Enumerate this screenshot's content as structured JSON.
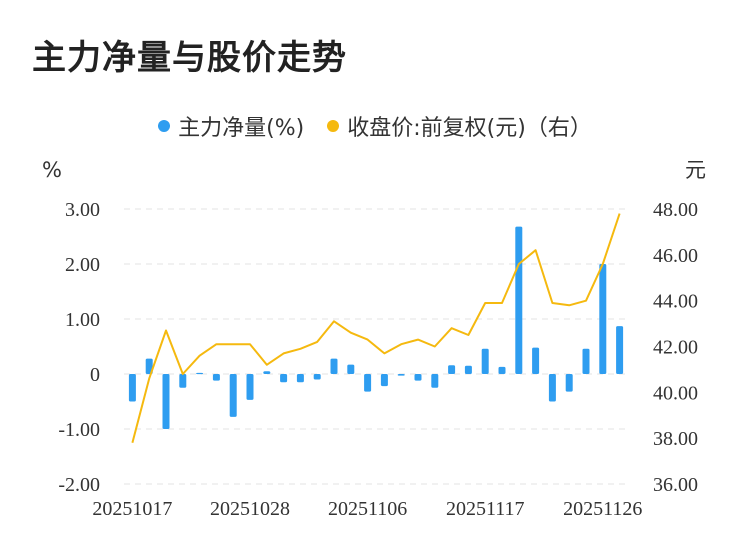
{
  "title": "主力净量与股价走势",
  "colors": {
    "bar": "#2e9df0",
    "line": "#f5b90f",
    "grid": "#e3e3e3"
  },
  "legend": [
    {
      "label": "主力净量(%)",
      "color": "#2e9df0",
      "icon": "dot"
    },
    {
      "label": "收盘价:前复权(元)（右）",
      "color": "#f5b90f",
      "icon": "dot"
    }
  ],
  "chart_data": {
    "type": "bar+line",
    "left_unit": "%",
    "right_unit": "元",
    "ylim": [
      -2.0,
      3.0
    ],
    "y2lim": [
      36.0,
      48.0
    ],
    "y_ticks": [
      "3.00",
      "2.00",
      "1.00",
      "0",
      "-1.00",
      "-2.00"
    ],
    "y_tick_values": [
      3,
      2,
      1,
      0,
      -1,
      -2
    ],
    "y2_ticks": [
      "48.00",
      "46.00",
      "44.00",
      "42.00",
      "40.00",
      "38.00",
      "36.00"
    ],
    "y2_tick_values": [
      48,
      46,
      44,
      42,
      40,
      38,
      36
    ],
    "x_tick_labels": [
      {
        "index": 0,
        "label": "20251017"
      },
      {
        "index": 7,
        "label": "20251028"
      },
      {
        "index": 14,
        "label": "20251106"
      },
      {
        "index": 21,
        "label": "20251117"
      },
      {
        "index": 28,
        "label": "20251126"
      }
    ],
    "grid": true,
    "legend_position": "top-center",
    "series": [
      {
        "name": "主力净量(%)",
        "type": "bar",
        "axis": "left",
        "values": [
          -0.5,
          0.28,
          -1.0,
          -0.25,
          0.02,
          -0.12,
          -0.78,
          -0.47,
          0.05,
          -0.15,
          -0.15,
          -0.1,
          0.28,
          0.17,
          -0.32,
          -0.22,
          -0.03,
          -0.12,
          -0.25,
          0.16,
          0.15,
          0.46,
          0.13,
          2.68,
          0.48,
          -0.5,
          -0.32,
          0.46,
          2.0,
          0.87
        ]
      },
      {
        "name": "收盘价:前复权(元)（右）",
        "type": "line",
        "axis": "right",
        "values": [
          37.8,
          40.6,
          42.7,
          40.8,
          41.6,
          42.1,
          42.1,
          42.1,
          41.2,
          41.7,
          41.9,
          42.2,
          43.1,
          42.6,
          42.3,
          41.7,
          42.1,
          42.3,
          42.0,
          42.8,
          42.5,
          43.9,
          43.9,
          45.6,
          46.2,
          43.9,
          43.8,
          44.0,
          45.6,
          47.8
        ]
      }
    ]
  }
}
